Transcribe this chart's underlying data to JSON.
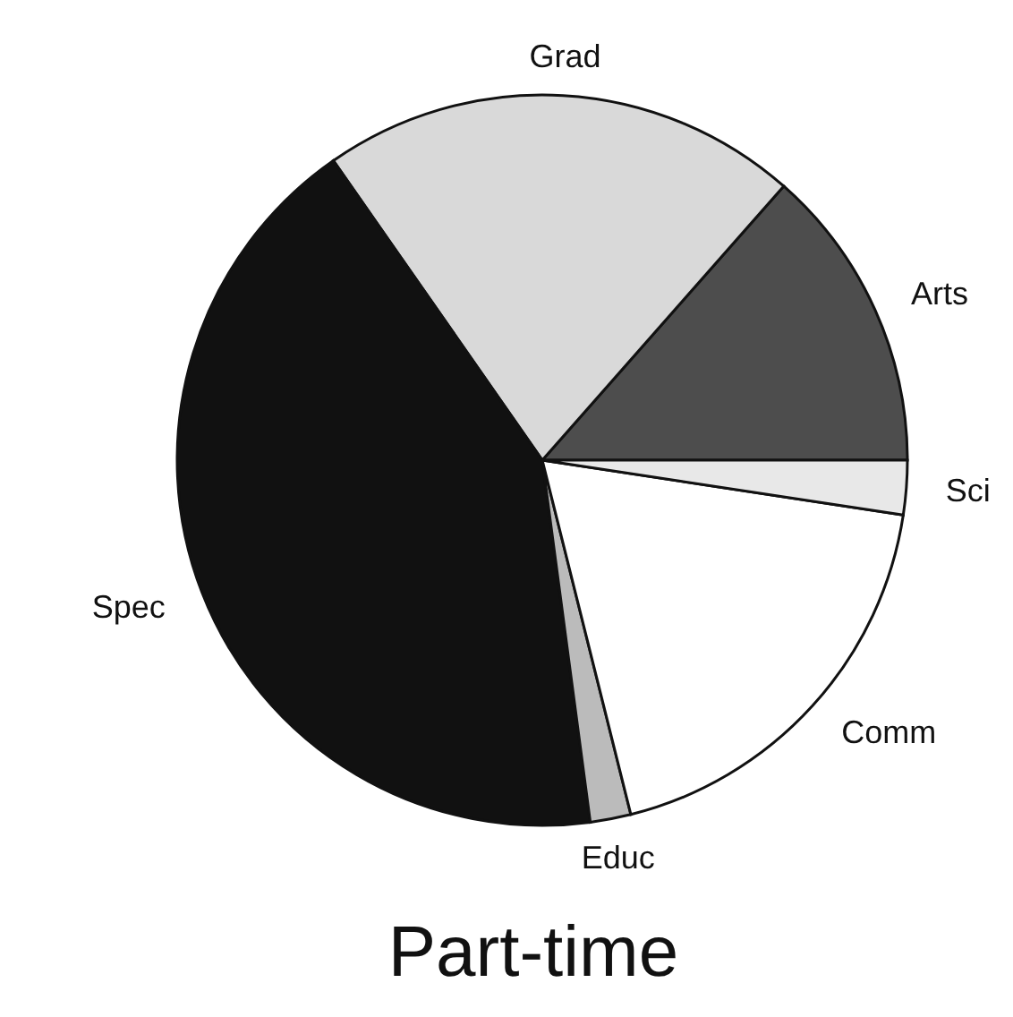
{
  "chart_data": {
    "type": "pie",
    "title": "Part-time",
    "categories": [
      "Arts",
      "Grad",
      "Spec",
      "Educ",
      "Comm",
      "Sci"
    ],
    "values": [
      13.5,
      21.2,
      42.4,
      1.8,
      18.7,
      2.4
    ],
    "colors": [
      "#4d4d4d",
      "#d9d9d9",
      "#111111",
      "#bbbbbb",
      "#ffffff",
      "#e8e8e8"
    ],
    "legend": false
  }
}
